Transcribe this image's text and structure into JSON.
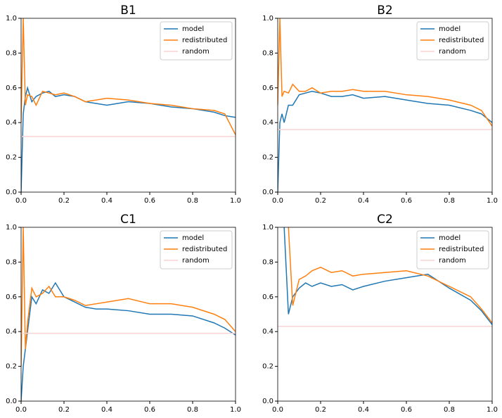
{
  "chart_data": [
    {
      "type": "line",
      "title": "B1",
      "x": [
        0,
        0.01,
        0.02,
        0.03,
        0.05,
        0.07,
        0.1,
        0.13,
        0.16,
        0.2,
        0.25,
        0.3,
        0.35,
        0.4,
        0.5,
        0.6,
        0.7,
        0.8,
        0.9,
        0.95,
        1.0
      ],
      "series": [
        {
          "name": "model",
          "color": "#1f77b4",
          "values": [
            0,
            0.45,
            0.55,
            0.6,
            0.52,
            0.55,
            0.57,
            0.58,
            0.55,
            0.56,
            0.55,
            0.52,
            0.51,
            0.5,
            0.52,
            0.51,
            0.49,
            0.48,
            0.46,
            0.44,
            0.43
          ]
        },
        {
          "name": "redistributed",
          "color": "#ff7f0e",
          "values": [
            0.4,
            1.0,
            0.5,
            0.56,
            0.55,
            0.5,
            0.58,
            0.57,
            0.56,
            0.57,
            0.55,
            0.52,
            0.53,
            0.54,
            0.53,
            0.51,
            0.5,
            0.48,
            0.47,
            0.45,
            0.33
          ]
        },
        {
          "name": "random",
          "color": "#f8d4d4",
          "values": [
            0.32,
            0.32,
            0.32,
            0.32,
            0.32,
            0.32,
            0.32,
            0.32,
            0.32,
            0.32,
            0.32,
            0.32,
            0.32,
            0.32,
            0.32,
            0.32,
            0.32,
            0.32,
            0.32,
            0.32,
            0.32
          ]
        }
      ],
      "xlim": [
        0,
        1
      ],
      "ylim": [
        0,
        1
      ],
      "xticks": [
        {
          "value": 0,
          "label": "0.0"
        },
        0.2,
        0.4,
        0.6,
        0.8,
        {
          "value": 1,
          "label": "1.0"
        }
      ],
      "yticks": [
        {
          "value": 0,
          "label": "0.0"
        },
        0.2,
        0.4,
        0.6,
        0.8,
        {
          "value": 1,
          "label": "1.0"
        }
      ],
      "legend": "upper right"
    },
    {
      "type": "line",
      "title": "B2",
      "x": [
        0,
        0.01,
        0.02,
        0.03,
        0.05,
        0.07,
        0.1,
        0.13,
        0.16,
        0.2,
        0.25,
        0.3,
        0.35,
        0.4,
        0.5,
        0.6,
        0.7,
        0.8,
        0.9,
        0.95,
        1.0
      ],
      "series": [
        {
          "name": "model",
          "color": "#1f77b4",
          "values": [
            0,
            0.4,
            0.45,
            0.4,
            0.5,
            0.5,
            0.56,
            0.57,
            0.58,
            0.57,
            0.55,
            0.55,
            0.56,
            0.54,
            0.55,
            0.53,
            0.51,
            0.5,
            0.47,
            0.45,
            0.4
          ]
        },
        {
          "name": "redistributed",
          "color": "#ff7f0e",
          "values": [
            0.5,
            1.0,
            0.55,
            0.58,
            0.57,
            0.62,
            0.58,
            0.58,
            0.6,
            0.57,
            0.58,
            0.58,
            0.59,
            0.58,
            0.58,
            0.56,
            0.55,
            0.53,
            0.5,
            0.47,
            0.38
          ]
        },
        {
          "name": "random",
          "color": "#f8d4d4",
          "values": [
            0.36,
            0.36,
            0.36,
            0.36,
            0.36,
            0.36,
            0.36,
            0.36,
            0.36,
            0.36,
            0.36,
            0.36,
            0.36,
            0.36,
            0.36,
            0.36,
            0.36,
            0.36,
            0.36,
            0.36,
            0.36
          ]
        }
      ],
      "xlim": [
        0,
        1
      ],
      "ylim": [
        0,
        1
      ],
      "xticks": [
        {
          "value": 0,
          "label": "0.0"
        },
        0.2,
        0.4,
        0.6,
        0.8,
        {
          "value": 1,
          "label": "1.0"
        }
      ],
      "yticks": [
        {
          "value": 0,
          "label": "0.0"
        },
        0.2,
        0.4,
        0.6,
        0.8,
        {
          "value": 1,
          "label": "1.0"
        }
      ],
      "legend": "upper right"
    },
    {
      "type": "line",
      "title": "C1",
      "x": [
        0,
        0.01,
        0.02,
        0.03,
        0.05,
        0.07,
        0.1,
        0.13,
        0.16,
        0.2,
        0.25,
        0.3,
        0.35,
        0.4,
        0.5,
        0.6,
        0.7,
        0.8,
        0.9,
        0.95,
        1.0
      ],
      "series": [
        {
          "name": "model",
          "color": "#1f77b4",
          "values": [
            0,
            0.2,
            0.3,
            0.4,
            0.6,
            0.56,
            0.64,
            0.62,
            0.68,
            0.6,
            0.57,
            0.54,
            0.53,
            0.53,
            0.52,
            0.5,
            0.5,
            0.49,
            0.45,
            0.42,
            0.38
          ]
        },
        {
          "name": "redistributed",
          "color": "#ff7f0e",
          "values": [
            0.2,
            1.0,
            0.3,
            0.45,
            0.65,
            0.6,
            0.62,
            0.66,
            0.6,
            0.6,
            0.58,
            0.55,
            0.56,
            0.57,
            0.59,
            0.56,
            0.56,
            0.54,
            0.5,
            0.47,
            0.4
          ]
        },
        {
          "name": "random",
          "color": "#f8d4d4",
          "values": [
            0.39,
            0.39,
            0.39,
            0.39,
            0.39,
            0.39,
            0.39,
            0.39,
            0.39,
            0.39,
            0.39,
            0.39,
            0.39,
            0.39,
            0.39,
            0.39,
            0.39,
            0.39,
            0.39,
            0.39,
            0.39
          ]
        }
      ],
      "xlim": [
        0,
        1
      ],
      "ylim": [
        0,
        1
      ],
      "xticks": [
        {
          "value": 0,
          "label": "0.0"
        },
        0.2,
        0.4,
        0.6,
        0.8,
        {
          "value": 1,
          "label": "1.0"
        }
      ],
      "yticks": [
        {
          "value": 0,
          "label": "0.0"
        },
        0.2,
        0.4,
        0.6,
        0.8,
        {
          "value": 1,
          "label": "1.0"
        }
      ],
      "legend": "upper right"
    },
    {
      "type": "line",
      "title": "C2",
      "x": [
        0,
        0.01,
        0.02,
        0.03,
        0.05,
        0.07,
        0.1,
        0.13,
        0.16,
        0.2,
        0.25,
        0.3,
        0.35,
        0.4,
        0.5,
        0.6,
        0.7,
        0.8,
        0.9,
        0.95,
        1.0
      ],
      "series": [
        {
          "name": "model",
          "color": "#1f77b4",
          "values": [
            null,
            null,
            null,
            1.0,
            0.5,
            0.6,
            0.65,
            0.68,
            0.66,
            0.68,
            0.66,
            0.67,
            0.64,
            0.66,
            0.69,
            0.71,
            0.73,
            0.65,
            0.58,
            0.52,
            0.44
          ]
        },
        {
          "name": "redistributed",
          "color": "#ff7f0e",
          "values": [
            null,
            null,
            null,
            null,
            1.0,
            0.55,
            0.7,
            0.72,
            0.75,
            0.77,
            0.74,
            0.75,
            0.72,
            0.73,
            0.74,
            0.75,
            0.72,
            0.66,
            0.6,
            0.53,
            0.45
          ]
        },
        {
          "name": "random",
          "color": "#f8d4d4",
          "values": [
            0.43,
            0.43,
            0.43,
            0.43,
            0.43,
            0.43,
            0.43,
            0.43,
            0.43,
            0.43,
            0.43,
            0.43,
            0.43,
            0.43,
            0.43,
            0.43,
            0.43,
            0.43,
            0.43,
            0.43,
            0.43
          ]
        }
      ],
      "xlim": [
        0,
        1
      ],
      "ylim": [
        0,
        1
      ],
      "xticks": [
        {
          "value": 0,
          "label": "0.0"
        },
        0.2,
        0.4,
        0.6,
        0.8,
        {
          "value": 1,
          "label": "1.0"
        }
      ],
      "yticks": [
        {
          "value": 0,
          "label": "0.0"
        },
        0.2,
        0.4,
        0.6,
        0.8,
        {
          "value": 1,
          "label": "1.0"
        }
      ],
      "legend": "upper right"
    }
  ]
}
